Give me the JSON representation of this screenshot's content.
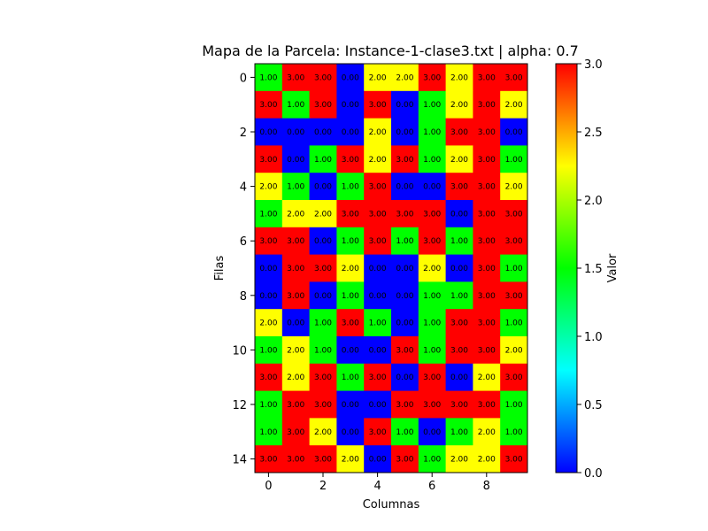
{
  "chart_data": {
    "type": "heatmap",
    "title": "Mapa de la Parcela: Instance-1-clase3.txt | alpha: 0.7",
    "xlabel": "Columnas",
    "ylabel": "Filas",
    "colorbar_label": "Valor",
    "x_ticks": [
      "0",
      "2",
      "4",
      "6",
      "8"
    ],
    "y_ticks": [
      "0",
      "2",
      "4",
      "6",
      "8",
      "10",
      "12",
      "14"
    ],
    "colorbar_ticks": [
      "0.0",
      "0.5",
      "1.0",
      "1.5",
      "2.0",
      "2.5",
      "3.0"
    ],
    "value_range": [
      0,
      3
    ],
    "colormap_stops": [
      "#0000ff",
      "#00ffff",
      "#00ff00",
      "#ffff00",
      "#ff0000"
    ],
    "value_colors": {
      "0": "#0000ff",
      "1": "#00ff00",
      "2": "#ffff00",
      "3": "#ff0000"
    },
    "rows": [
      [
        1,
        3,
        3,
        0,
        2,
        2,
        3,
        2,
        3,
        3
      ],
      [
        3,
        1,
        3,
        0,
        3,
        0,
        1,
        2,
        3,
        2
      ],
      [
        0,
        0,
        0,
        0,
        2,
        0,
        1,
        3,
        3,
        0
      ],
      [
        3,
        0,
        1,
        3,
        2,
        3,
        1,
        2,
        3,
        1
      ],
      [
        2,
        1,
        0,
        1,
        3,
        0,
        0,
        3,
        3,
        2
      ],
      [
        1,
        2,
        2,
        3,
        3,
        3,
        3,
        0,
        3,
        3
      ],
      [
        3,
        3,
        0,
        1,
        3,
        1,
        3,
        1,
        3,
        3
      ],
      [
        0,
        3,
        3,
        2,
        0,
        0,
        2,
        0,
        3,
        1
      ],
      [
        0,
        3,
        0,
        1,
        0,
        0,
        1,
        1,
        3,
        3
      ],
      [
        2,
        0,
        1,
        3,
        1,
        0,
        1,
        3,
        3,
        1
      ],
      [
        1,
        2,
        1,
        0,
        0,
        3,
        1,
        3,
        3,
        2
      ],
      [
        3,
        2,
        3,
        1,
        3,
        0,
        3,
        0,
        2,
        3
      ],
      [
        1,
        3,
        3,
        0,
        0,
        3,
        3,
        3,
        3,
        1
      ],
      [
        1,
        3,
        2,
        0,
        3,
        1,
        0,
        1,
        2,
        1
      ],
      [
        3,
        3,
        3,
        2,
        0,
        3,
        1,
        2,
        2,
        3
      ]
    ]
  }
}
